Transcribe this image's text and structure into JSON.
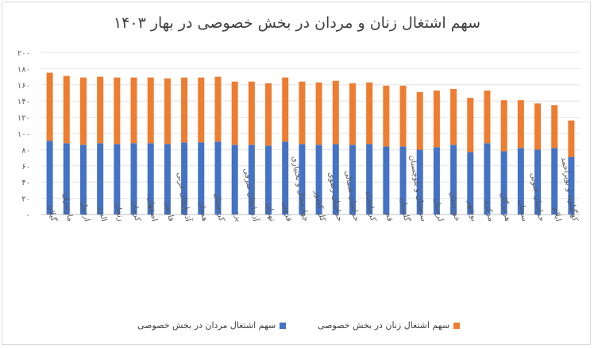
{
  "chart_data": {
    "type": "bar",
    "stacked": true,
    "title": "سهم اشتغال زنان و مردان در بخش خصوصی در بهار ۱۴۰۳",
    "ylim": [
      0,
      200
    ],
    "yticks": [
      "۰",
      "۲۰",
      "۴۰",
      "۶۰",
      "۸۰",
      "۱۰۰",
      "۱۲۰",
      "۱۴۰",
      "۱۶۰",
      "۱۸۰",
      "۲۰۰"
    ],
    "grid": true,
    "legend_position": "bottom",
    "categories": [
      "گیلان",
      "مازندران",
      "اردبیل",
      "البرز",
      "زنجان",
      "کرمان",
      "اصفهان",
      "فارس",
      "آذربایجان غربی",
      "همدان",
      "کردستان",
      "یزد",
      "آذربایجان شرقی",
      "تهران",
      "قزوین",
      "چهارمحال و بختیاری",
      "کل کشور",
      "خراسان رضوی",
      "خراسان شمالی",
      "کرمانشاه",
      "قم",
      "گلستان",
      "سیستان و بلوچستان",
      "لرستان",
      "خوزستان",
      "بوشهر",
      "مرکزی",
      "هرمزگان",
      "سمنان",
      "خراسان جنوبی",
      "ایلام",
      "کهگیلویه و بویراحمد"
    ],
    "series": [
      {
        "name": "سهم اشتغال مردان در بخش خصوصی",
        "color": "#4472c4",
        "values": [
          91,
          88,
          86,
          88,
          87,
          88,
          88,
          87,
          89,
          89,
          90,
          86,
          86,
          85,
          90,
          87,
          86,
          87,
          86,
          87,
          84,
          84,
          80,
          83,
          86,
          77,
          88,
          78,
          82,
          80,
          82,
          71
        ]
      },
      {
        "name": "سهم اشتغال زنان در بخش خصوصی",
        "color": "#ed7d31",
        "values": [
          84,
          83,
          83,
          82,
          82,
          81,
          81,
          81,
          80,
          80,
          80,
          78,
          78,
          77,
          79,
          77,
          77,
          78,
          76,
          76,
          75,
          75,
          71,
          70,
          69,
          67,
          65,
          63,
          59,
          57,
          53,
          45
        ]
      }
    ]
  }
}
